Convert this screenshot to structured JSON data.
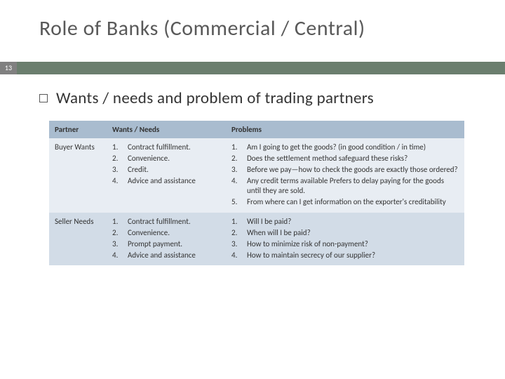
{
  "slide": {
    "title": "Role of Banks (Commercial / Central)",
    "number": "13",
    "subtitle": "Wants / needs and problem of trading partners"
  },
  "table": {
    "headers": {
      "partner": "Partner",
      "wants": "Wants / Needs",
      "problems": "Problems"
    },
    "rows": [
      {
        "partner": "Buyer Wants",
        "wants": [
          "Contract fulfillment.",
          "Convenience.",
          "Credit.",
          "Advice and assistance"
        ],
        "problems": [
          "Am I going to get the goods? (in good condition / in time)",
          "Does the settlement method safeguard these risks?",
          "Before we pay—how to check the goods are exactly those ordered?",
          "Any credit terms available Prefers to delay paying for the goods until they are sold.",
          "From where can I get information on the exporter's creditability"
        ]
      },
      {
        "partner": "Seller Needs",
        "wants": [
          "Contract fulfillment.",
          "Convenience.",
          "Prompt payment.",
          "Advice and assistance"
        ],
        "problems": [
          "Will I be paid?",
          "When will I be paid?",
          "How to minimize risk of non-payment?",
          "How to maintain secrecy of our supplier?"
        ]
      }
    ]
  },
  "colors": {
    "band": "#6b7e6e",
    "slide_number_bg": "#808080",
    "header_bg": "#a9bccf",
    "row_even_bg": "#e8edf3",
    "row_odd_bg": "#d2dce7",
    "title_color": "#595959"
  }
}
